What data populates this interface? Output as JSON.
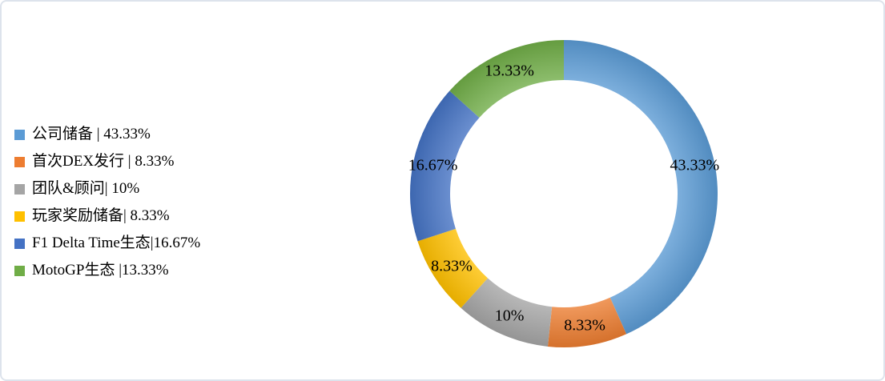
{
  "page": {
    "background_color": "#ffffff",
    "frame_border_color": "#dde3ec"
  },
  "chart_data": {
    "type": "pie",
    "subtype": "doughnut",
    "title": "",
    "legend_position": "left",
    "donut_hole_ratio": 0.74,
    "label_placement": "center-of-ring",
    "text_color": "#000000",
    "slices": [
      {
        "name": "公司储备",
        "value": 43.33,
        "data_label": "43.33%",
        "legend_label": "公司储备 | 43.33%",
        "color": "#5B9BD5"
      },
      {
        "name": "首次DEX发行",
        "value": 8.33,
        "data_label": "8.33%",
        "legend_label": "首次DEX发行 | 8.33%",
        "color": "#ED7D31"
      },
      {
        "name": "团队&顾问",
        "value": 10,
        "data_label": "10%",
        "legend_label": "团队&顾问| 10%",
        "color": "#A5A5A5"
      },
      {
        "name": "玩家奖励储备",
        "value": 8.33,
        "data_label": "8.33%",
        "legend_label": "玩家奖励储备| 8.33%",
        "color": "#FFC000"
      },
      {
        "name": "F1 Delta Time生态",
        "value": 16.67,
        "data_label": "16.67%",
        "legend_label": "F1 Delta Time生态|16.67%",
        "color": "#4472C4"
      },
      {
        "name": "MotoGP生态",
        "value": 13.33,
        "data_label": "13.33%",
        "legend_label": "MotoGP生态 |13.33%",
        "color": "#70AD47"
      }
    ]
  }
}
